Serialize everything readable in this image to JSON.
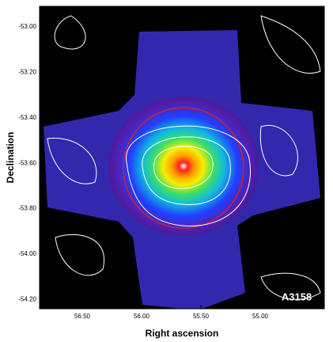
{
  "chart_data": {
    "type": "image",
    "xlabel": "Right ascension",
    "ylabel": "Declination",
    "annotation": "A3158",
    "xlim": [
      56.86,
      54.46
    ],
    "ylim": [
      -54.24,
      -52.91
    ],
    "xticks": [
      {
        "value": 56.5,
        "label": "56.50"
      },
      {
        "value": 56,
        "label": "56.00"
      },
      {
        "value": 55.5,
        "label": "55.50"
      },
      {
        "value": 55,
        "label": "55.00"
      }
    ],
    "yticks": [
      {
        "value": -53,
        "label": "-53.00"
      },
      {
        "value": -53.2,
        "label": "-53.20"
      },
      {
        "value": -53.4,
        "label": "-53.40"
      },
      {
        "value": -53.6,
        "label": "-53.60"
      },
      {
        "value": -53.8,
        "label": "-53.80"
      },
      {
        "value": -54,
        "label": "-54.00"
      },
      {
        "value": -54.2,
        "label": "-54.20"
      }
    ]
  }
}
